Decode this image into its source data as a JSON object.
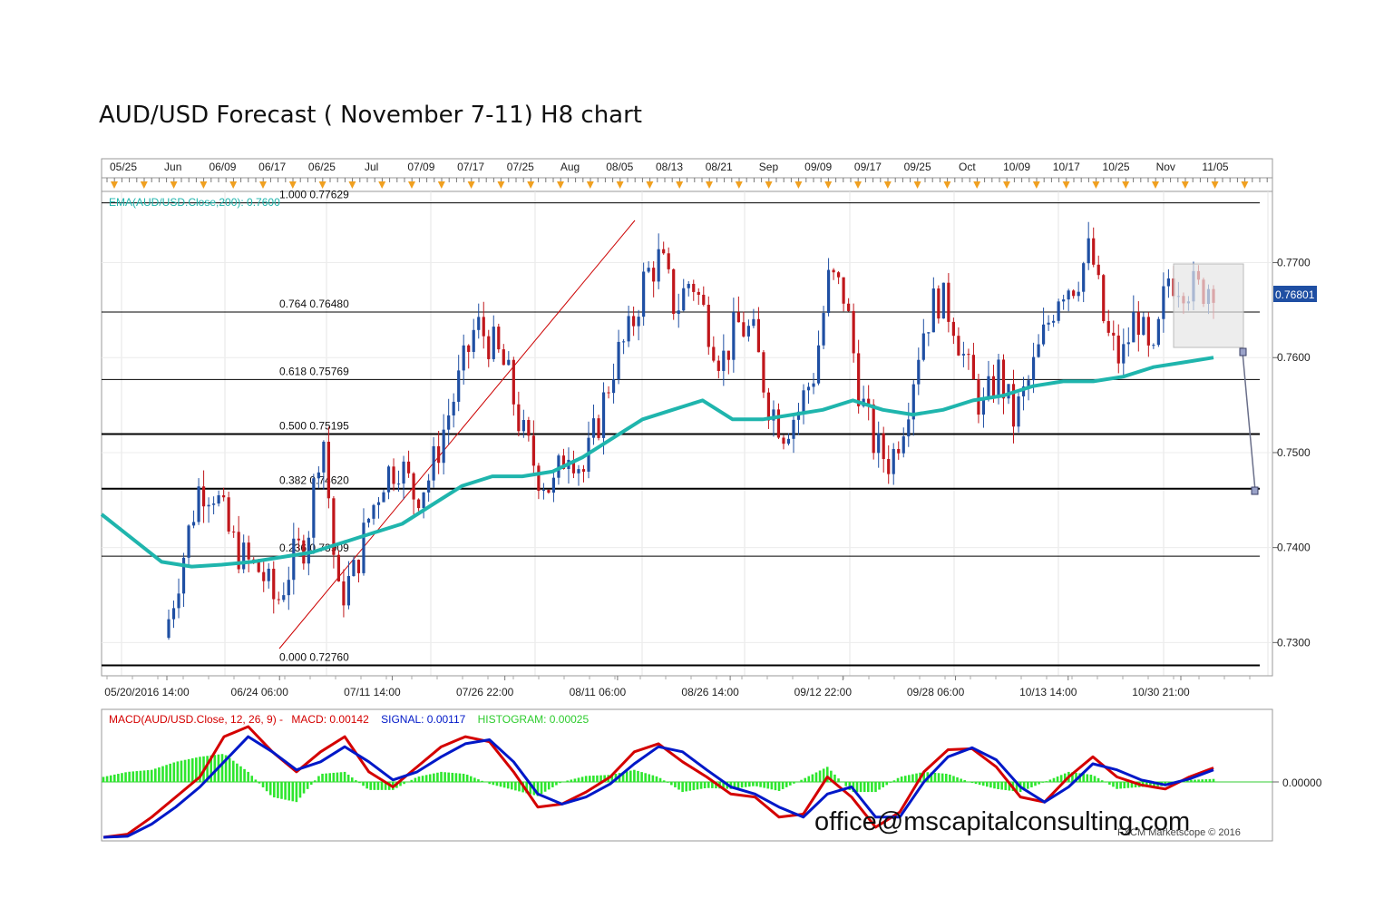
{
  "title": "AUD/USD Forecast ( November 7-11) H8 chart",
  "watermark": "office@mscapitalconsulting.com",
  "credit": "FXCM Marketscope © 2016",
  "colors": {
    "ema": "#1fb5ad",
    "fib_line": "#000000",
    "trend_line": "#cc0000",
    "candle": "#1f4fa3",
    "candle_down": "#c0161b",
    "macd": "#d40000",
    "signal": "#0018c8",
    "histogram": "#2ee62e",
    "price_tag": "#1f4fa3"
  },
  "chart_data": [
    {
      "type": "candlestick",
      "instrument": "AUD/USD",
      "timeframe": "H8",
      "top_date_labels": [
        "05/25",
        "Jun",
        "06/09",
        "06/17",
        "06/25",
        "Jul",
        "07/09",
        "07/17",
        "07/25",
        "Aug",
        "08/05",
        "08/13",
        "08/21",
        "Sep",
        "09/09",
        "09/17",
        "09/25",
        "Oct",
        "10/09",
        "10/17",
        "10/25",
        "Nov",
        "11/05"
      ],
      "bottom_date_labels": [
        "05/20/2016 14:00",
        "06/24 06:00",
        "07/11 14:00",
        "07/26 22:00",
        "08/11 06:00",
        "08/26 14:00",
        "09/12 22:00",
        "09/28 06:00",
        "10/13 14:00",
        "10/30 21:00"
      ],
      "y_ticks": [
        "0.7700",
        "0.7600",
        "0.7500",
        "0.7400",
        "0.7300"
      ],
      "ylim": [
        0.7265,
        0.7775
      ],
      "current_price": "0.76801",
      "ema_legend": "EMA(AUD/USD.Close,200): 0.7600",
      "fibonacci_levels": [
        {
          "ratio": "1.000",
          "price": "0.77629",
          "value": 0.77629
        },
        {
          "ratio": "0.764",
          "price": "0.76480",
          "value": 0.7648
        },
        {
          "ratio": "0.618",
          "price": "0.75769",
          "value": 0.75769
        },
        {
          "ratio": "0.500",
          "price": "0.75195",
          "value": 0.75195
        },
        {
          "ratio": "0.382",
          "price": "0.74620",
          "value": 0.7462
        },
        {
          "ratio": "0.236",
          "price": "0.73909",
          "value": 0.73909
        },
        {
          "ratio": "0.000",
          "price": "0.72760",
          "value": 0.7276
        }
      ],
      "close_path": [
        0.7325,
        0.7395,
        0.7465,
        0.746,
        0.741,
        0.7385,
        0.7375,
        0.734,
        0.7385,
        0.741,
        0.753,
        0.7345,
        0.737,
        0.743,
        0.7475,
        0.749,
        0.7455,
        0.7475,
        0.753,
        0.758,
        0.7635,
        0.7615,
        0.7585,
        0.752,
        0.748,
        0.746,
        0.751,
        0.748,
        0.7535,
        0.7595,
        0.7625,
        0.7685,
        0.7705,
        0.765,
        0.7685,
        0.764,
        0.7595,
        0.7635,
        0.7625,
        0.7555,
        0.7525,
        0.7545,
        0.7585,
        0.7685,
        0.7665,
        0.756,
        0.7505,
        0.749,
        0.7545,
        0.7625,
        0.7665,
        0.7645,
        0.7585,
        0.7545,
        0.7585,
        0.7535,
        0.7575,
        0.7625,
        0.7675,
        0.768,
        0.7715,
        0.7625,
        0.7595,
        0.765,
        0.7585,
        0.7685,
        0.768,
        0.767,
        0.768
      ],
      "ema_values": [
        0.7435,
        0.741,
        0.7385,
        0.738,
        0.7382,
        0.7385,
        0.739,
        0.7395,
        0.7405,
        0.7415,
        0.7425,
        0.7445,
        0.7465,
        0.7475,
        0.7475,
        0.748,
        0.7495,
        0.7515,
        0.7535,
        0.7545,
        0.7555,
        0.7535,
        0.7535,
        0.754,
        0.7545,
        0.7555,
        0.7545,
        0.754,
        0.7545,
        0.7555,
        0.756,
        0.757,
        0.7575,
        0.7575,
        0.758,
        0.759,
        0.7595,
        0.76
      ]
    },
    {
      "type": "line",
      "indicator": "MACD",
      "legend": {
        "main": "MACD(AUD/USD.Close, 12, 26, 9) -",
        "macd": "MACD: 0.00142",
        "signal": "SIGNAL: 0.00117",
        "histogram": "HISTOGRAM: 0.00025"
      },
      "y_tick": "0.00000",
      "ylim": [
        -0.006,
        0.006
      ],
      "series": [
        {
          "name": "MACD",
          "values": [
            -0.0055,
            -0.0052,
            -0.0035,
            -0.0015,
            0.0005,
            0.0045,
            0.0055,
            0.003,
            0.001,
            0.003,
            0.0045,
            0.001,
            -0.0005,
            0.0015,
            0.0035,
            0.0045,
            0.004,
            0.001,
            -0.0025,
            -0.0022,
            -0.001,
            0.0005,
            0.003,
            0.0038,
            0.002,
            0.0005,
            -0.0012,
            -0.0015,
            -0.0035,
            -0.0032,
            0.0005,
            -0.0015,
            -0.0045,
            -0.003,
            0.001,
            0.0032,
            0.0033,
            0.0015,
            -0.0015,
            -0.002,
            0.0005,
            0.0025,
            0.0005,
            -0.0003,
            -0.0007,
            0.0005,
            0.0014
          ]
        },
        {
          "name": "SIGNAL",
          "values": [
            -0.0055,
            -0.0054,
            -0.0042,
            -0.0025,
            -0.0005,
            0.002,
            0.0045,
            0.003,
            0.0012,
            0.002,
            0.0035,
            0.002,
            0.0002,
            0.001,
            0.0025,
            0.0038,
            0.0042,
            0.002,
            -0.0012,
            -0.0022,
            -0.0015,
            -0.0002,
            0.0018,
            0.0035,
            0.003,
            0.0012,
            -0.0005,
            -0.0012,
            -0.0025,
            -0.0035,
            -0.0012,
            -0.0005,
            -0.0035,
            -0.0035,
            0.0,
            0.0025,
            0.0034,
            0.0022,
            -0.0005,
            -0.002,
            -0.0005,
            0.0018,
            0.0012,
            0.0002,
            -0.0003,
            0.0003,
            0.0012
          ]
        },
        {
          "name": "HISTOGRAM",
          "values": [
            0.0005,
            0.001,
            0.0012,
            0.002,
            0.0025,
            0.0028,
            0.001,
            -0.0015,
            -0.002,
            0.0008,
            0.001,
            -0.0008,
            -0.0008,
            0.0005,
            0.001,
            0.0008,
            -0.0002,
            -0.0008,
            -0.0014,
            0.0,
            0.0006,
            0.0007,
            0.0012,
            0.0005,
            -0.001,
            -0.0006,
            -0.0007,
            -0.0004,
            -0.0009,
            0.0003,
            0.0015,
            -0.001,
            -0.001,
            0.0005,
            0.001,
            0.0008,
            -0.0001,
            -0.0007,
            -0.001,
            0.0,
            0.001,
            0.0007,
            -0.0007,
            -0.0005,
            -0.0004,
            0.0002,
            0.0003
          ]
        }
      ]
    }
  ]
}
